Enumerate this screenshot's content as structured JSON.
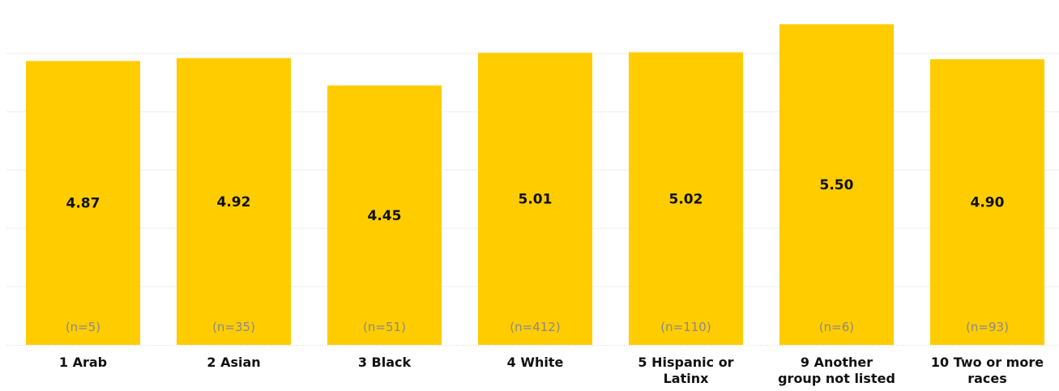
{
  "chart_data": {
    "type": "bar",
    "categories": [
      [
        "1 Arab"
      ],
      [
        "2 Asian"
      ],
      [
        "3 Black"
      ],
      [
        "4 White"
      ],
      [
        "5 Hispanic or",
        "Latinx"
      ],
      [
        "9 Another",
        "group not listed"
      ],
      [
        "10 Two or more",
        "races"
      ]
    ],
    "values": [
      4.87,
      4.92,
      4.45,
      5.01,
      5.02,
      5.5,
      4.9
    ],
    "value_labels": [
      "4.87",
      "4.92",
      "4.45",
      "5.01",
      "5.02",
      "5.50",
      "4.90"
    ],
    "n_labels": [
      "(n=5)",
      "(n=35)",
      "(n=51)",
      "(n=412)",
      "(n=110)",
      "(n=6)",
      "(n=93)"
    ],
    "ylim": [
      0,
      6
    ],
    "grid": true,
    "bar_color": "#FFCC00",
    "title": "",
    "xlabel": "",
    "ylabel": ""
  }
}
